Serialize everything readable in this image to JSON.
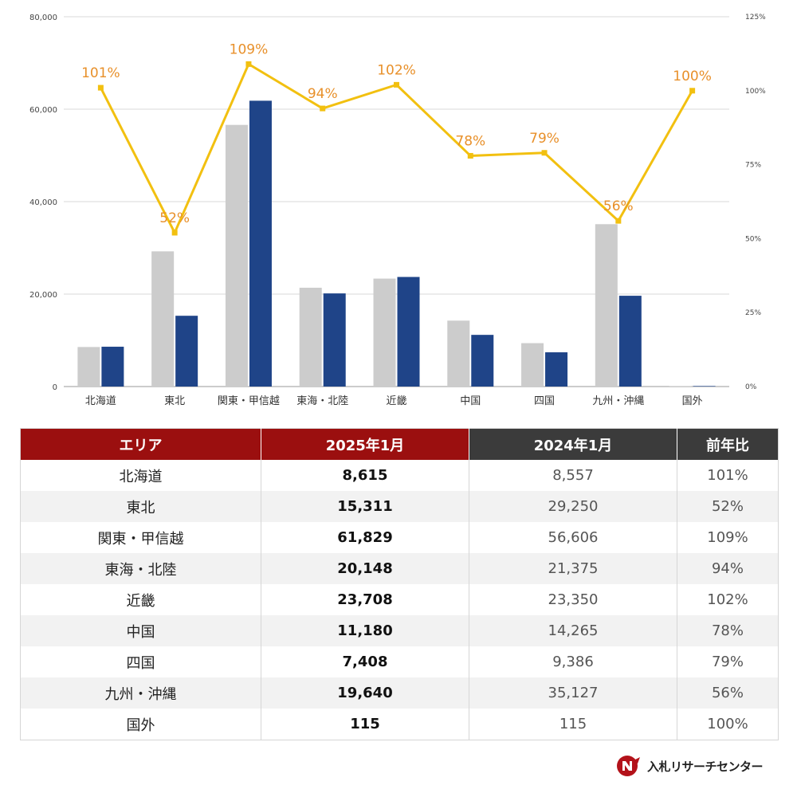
{
  "chart_data": {
    "type": "bar",
    "categories": [
      "北海道",
      "東北",
      "関東・甲信越",
      "東海・北陸",
      "近畿",
      "中国",
      "四国",
      "九州・沖縄",
      "国外"
    ],
    "series": [
      {
        "values": [
          8557,
          29250,
          56606,
          21375,
          23350,
          14265,
          9386,
          35127,
          115
        ],
        "color": "#cccccc"
      },
      {
        "values": [
          8615,
          15311,
          61829,
          20148,
          23708,
          11180,
          7408,
          19640,
          115
        ],
        "color": "#1f4488"
      },
      {
        "type": "line",
        "axis": "right",
        "values": [
          101,
          52,
          109,
          94,
          102,
          78,
          79,
          56,
          100
        ],
        "color": "#f2c010"
      }
    ],
    "line_labels": [
      "101%",
      "52%",
      "109%",
      "94%",
      "102%",
      "78%",
      "79%",
      "56%",
      "100%"
    ],
    "line_label_color": "#e8902a",
    "y_left": {
      "ylim": [
        0,
        80000
      ],
      "ticks": [
        0,
        20000,
        40000,
        60000,
        80000
      ],
      "tick_labels": [
        "0",
        "20,000",
        "40,000",
        "60,000",
        "80,000"
      ]
    },
    "y_right": {
      "ylim": [
        0,
        125
      ],
      "ticks": [
        0,
        25,
        50,
        75,
        100,
        125
      ],
      "tick_labels": [
        "0%",
        "25%",
        "50%",
        "75%",
        "100%",
        "125%"
      ]
    },
    "grid": true,
    "legend": "none"
  },
  "table": {
    "headers": [
      "エリア",
      "2025年1月",
      "2024年1月",
      "前年比"
    ],
    "rows": [
      [
        "北海道",
        "8,615",
        "8,557",
        "101%"
      ],
      [
        "東北",
        "15,311",
        "29,250",
        "52%"
      ],
      [
        "関東・甲信越",
        "61,829",
        "56,606",
        "109%"
      ],
      [
        "東海・北陸",
        "20,148",
        "21,375",
        "94%"
      ],
      [
        "近畿",
        "23,708",
        "23,350",
        "102%"
      ],
      [
        "中国",
        "11,180",
        "14,265",
        "78%"
      ],
      [
        "四国",
        "7,408",
        "9,386",
        "79%"
      ],
      [
        "九州・沖縄",
        "19,640",
        "35,127",
        "56%"
      ],
      [
        "国外",
        "115",
        "115",
        "100%"
      ]
    ],
    "header_colors": {
      "area": "#9b0f0f",
      "current": "#9b0f0f",
      "previous": "#3b3b3b",
      "ratio": "#3b3b3b"
    }
  },
  "logo": {
    "text": "入札リサーチセンター",
    "icon": "nyusatsu-logo-icon",
    "color": "#b3121a"
  }
}
